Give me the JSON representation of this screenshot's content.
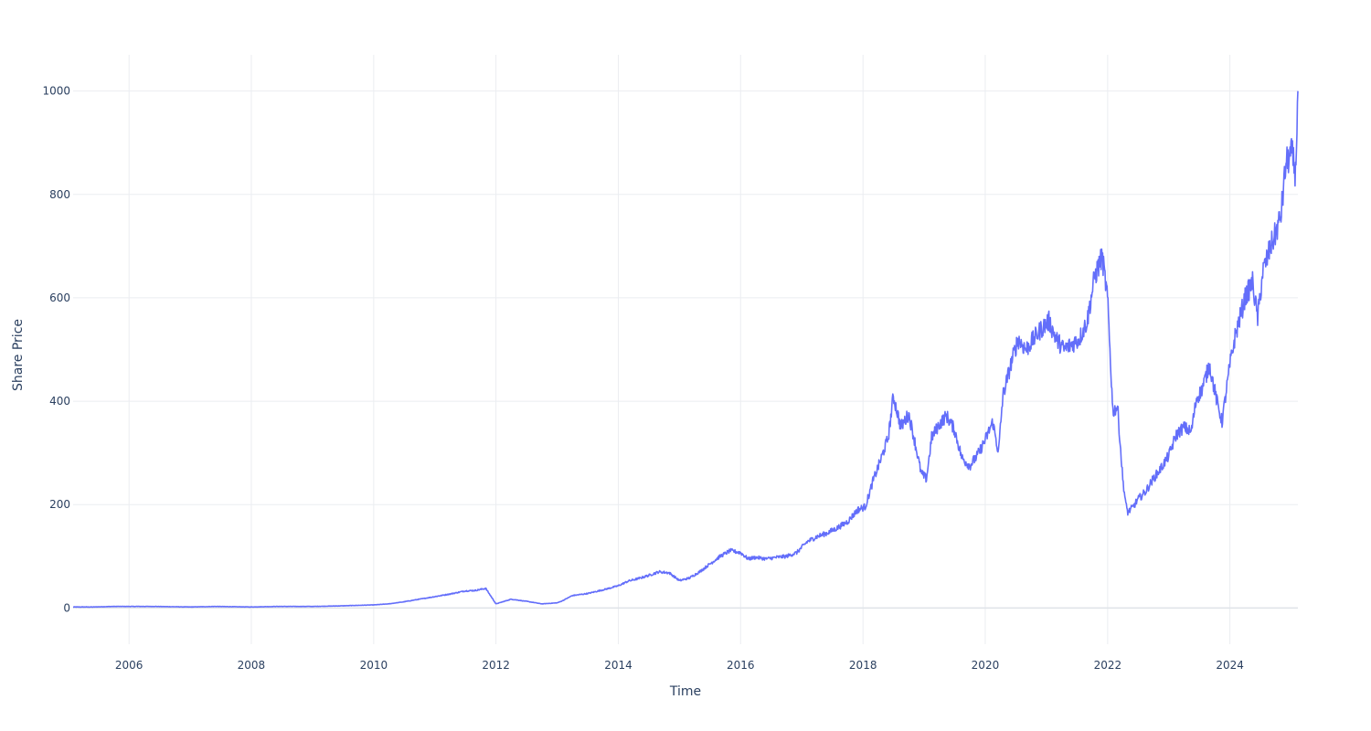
{
  "chart_data": {
    "type": "line",
    "title": "",
    "xlabel": "Time",
    "ylabel": "Share Price",
    "x_range": [
      "2005-02-01",
      "2025-02-10"
    ],
    "ylim": [
      -70,
      1070
    ],
    "x_ticks": [
      {
        "value": "2006-01-01",
        "label": "2006"
      },
      {
        "value": "2008-01-01",
        "label": "2008"
      },
      {
        "value": "2010-01-01",
        "label": "2010"
      },
      {
        "value": "2012-01-01",
        "label": "2012"
      },
      {
        "value": "2014-01-01",
        "label": "2014"
      },
      {
        "value": "2016-01-01",
        "label": "2016"
      },
      {
        "value": "2018-01-01",
        "label": "2018"
      },
      {
        "value": "2020-01-01",
        "label": "2020"
      },
      {
        "value": "2022-01-01",
        "label": "2022"
      },
      {
        "value": "2024-01-01",
        "label": "2024"
      }
    ],
    "y_ticks": [
      {
        "value": 0,
        "label": "0"
      },
      {
        "value": 200,
        "label": "200"
      },
      {
        "value": 400,
        "label": "400"
      },
      {
        "value": 600,
        "label": "600"
      },
      {
        "value": 800,
        "label": "800"
      },
      {
        "value": 1000,
        "label": "1000"
      }
    ],
    "grid": true,
    "legend": "none",
    "series": [
      {
        "color": "#636efa",
        "x": [
          "2005-02-01",
          "2005-06-01",
          "2005-10-01",
          "2006-01-01",
          "2006-06-01",
          "2007-01-01",
          "2007-06-01",
          "2008-01-01",
          "2008-06-01",
          "2009-01-01",
          "2009-06-01",
          "2010-01-01",
          "2010-04-01",
          "2010-07-01",
          "2010-10-01",
          "2011-01-01",
          "2011-04-01",
          "2011-07-01",
          "2011-09-01",
          "2011-11-01",
          "2012-01-01",
          "2012-04-01",
          "2012-07-01",
          "2012-10-01",
          "2013-01-01",
          "2013-02-01",
          "2013-04-01",
          "2013-07-01",
          "2013-10-01",
          "2014-01-01",
          "2014-03-01",
          "2014-05-01",
          "2014-07-01",
          "2014-09-01",
          "2014-11-01",
          "2015-01-01",
          "2015-03-01",
          "2015-05-01",
          "2015-07-01",
          "2015-09-01",
          "2015-11-01",
          "2016-01-01",
          "2016-02-15",
          "2016-04-01",
          "2016-06-01",
          "2016-08-01",
          "2016-10-01",
          "2016-12-01",
          "2017-02-01",
          "2017-04-01",
          "2017-06-01",
          "2017-08-01",
          "2017-10-01",
          "2017-12-01",
          "2018-01-15",
          "2018-03-01",
          "2018-04-15",
          "2018-06-01",
          "2018-07-01",
          "2018-08-15",
          "2018-10-01",
          "2018-11-01",
          "2018-12-15",
          "2019-01-15",
          "2019-02-15",
          "2019-04-01",
          "2019-05-15",
          "2019-07-01",
          "2019-08-15",
          "2019-10-01",
          "2019-11-15",
          "2020-01-01",
          "2020-02-15",
          "2020-03-20",
          "2020-04-15",
          "2020-06-01",
          "2020-07-15",
          "2020-09-01",
          "2020-10-15",
          "2020-12-01",
          "2021-01-15",
          "2021-03-01",
          "2021-04-15",
          "2021-06-01",
          "2021-07-15",
          "2021-09-01",
          "2021-10-15",
          "2021-11-29",
          "2021-12-31",
          "2022-02-01",
          "2022-03-01",
          "2022-04-01",
          "2022-04-20",
          "2022-05-01",
          "2022-06-01",
          "2022-07-01",
          "2022-08-15",
          "2022-10-01",
          "2022-11-15",
          "2023-01-01",
          "2023-02-15",
          "2023-04-01",
          "2023-05-15",
          "2023-06-15",
          "2023-07-15",
          "2023-09-01",
          "2023-10-15",
          "2023-11-15",
          "2024-01-01",
          "2024-02-01",
          "2024-03-08",
          "2024-04-01",
          "2024-05-15",
          "2024-06-15",
          "2024-07-15",
          "2024-08-05",
          "2024-09-01",
          "2024-10-01",
          "2024-11-01",
          "2024-12-01",
          "2025-01-06",
          "2025-01-27",
          "2025-02-10"
        ],
        "y": [
          2,
          2,
          3,
          3,
          3,
          2,
          3,
          2,
          3,
          3,
          4,
          6,
          8,
          12,
          17,
          22,
          27,
          33,
          34,
          38,
          8,
          17,
          13,
          8,
          10,
          14,
          24,
          28,
          35,
          43,
          52,
          57,
          63,
          70,
          68,
          53,
          58,
          70,
          85,
          100,
          111,
          107,
          95,
          98,
          95,
          98,
          100,
          107,
          128,
          138,
          145,
          155,
          167,
          190,
          196,
          245,
          285,
          330,
          410,
          350,
          375,
          330,
          260,
          250,
          330,
          355,
          372,
          345,
          290,
          275,
          295,
          325,
          360,
          300,
          410,
          470,
          520,
          500,
          520,
          540,
          555,
          520,
          500,
          510,
          520,
          555,
          640,
          680,
          600,
          380,
          390,
          250,
          200,
          185,
          195,
          210,
          225,
          250,
          270,
          295,
          335,
          350,
          340,
          405,
          420,
          470,
          400,
          360,
          470,
          525,
          570,
          600,
          630,
          560,
          650,
          670,
          700,
          725,
          760,
          860,
          880,
          840,
          1000
        ]
      }
    ]
  }
}
